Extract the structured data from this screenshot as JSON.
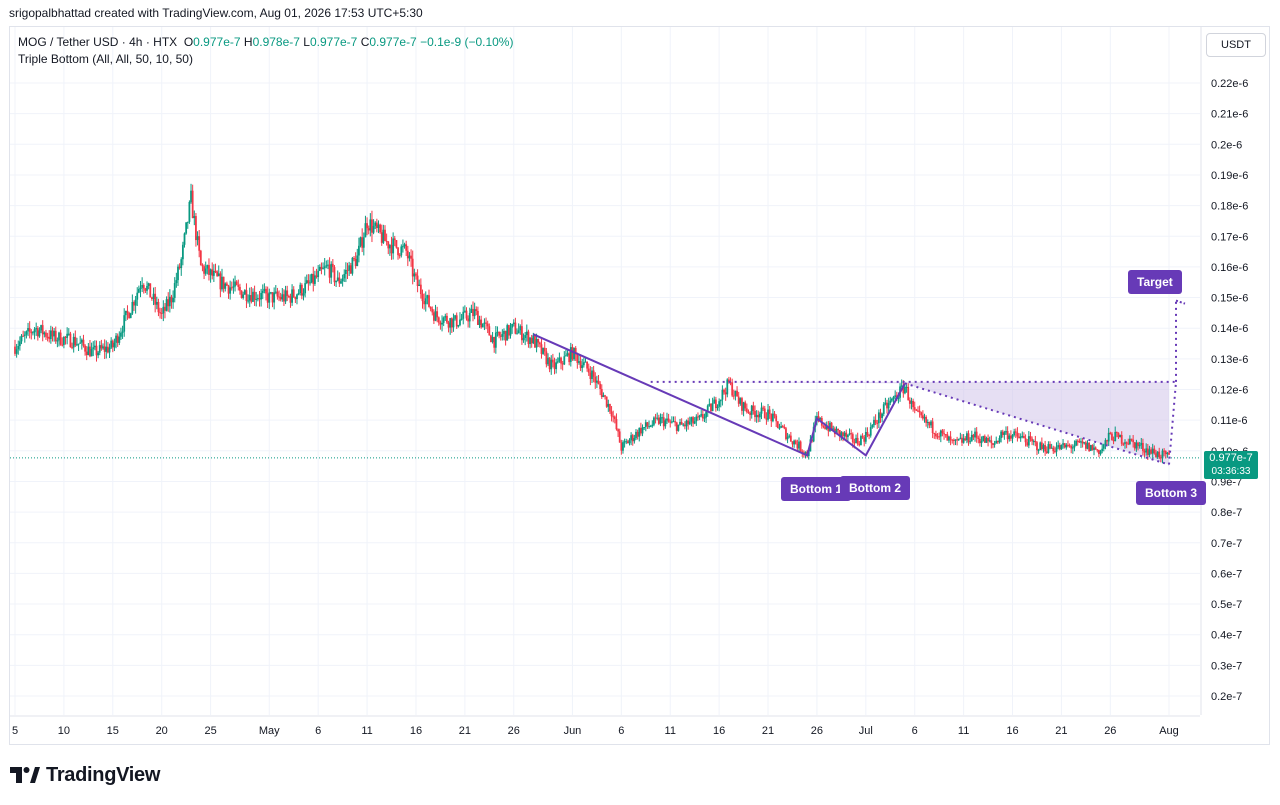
{
  "header": {
    "attribution": "srigopalbhattad created with TradingView.com, Aug 01, 2026 17:53 UTC+5:30"
  },
  "legend": {
    "symbol": "MOG / Tether USD · 4h · HTX",
    "o_key": "O",
    "o": "0.977e-7",
    "h_key": "H",
    "h": "0.978e-7",
    "l_key": "L",
    "l": "0.977e-7",
    "c_key": "C",
    "c": "0.977e-7",
    "change": "−0.1e-9 (−0.10%)",
    "indicator": "Triple Bottom (All, All, 50, 10, 50)"
  },
  "price_axis": {
    "unit": "USDT",
    "current_price": "0.977e-7",
    "countdown": "03:36:33"
  },
  "pattern_labels": {
    "bottom1": "Bottom 1",
    "bottom2": "Bottom 2",
    "bottom3": "Bottom 3",
    "target": "Target"
  },
  "brand": {
    "name": "TradingView"
  },
  "colors": {
    "up": "#089981",
    "down": "#f23645",
    "pattern": "#673ab7",
    "pattern_fill": "#d1c4e9",
    "grid": "#f0f3fa"
  },
  "chart_data": {
    "type": "candlestick",
    "title": "MOG / Tether USD · 4h · HTX",
    "ylabel": "USDT",
    "ylim": [
      1.5e-08,
      2.3e-07
    ],
    "y_ticks": [
      "0.2e-7",
      "0.3e-7",
      "0.4e-7",
      "0.5e-7",
      "0.6e-7",
      "0.7e-7",
      "0.8e-7",
      "0.9e-7",
      "0.10e-6",
      "0.11e-6",
      "0.12e-6",
      "0.13e-6",
      "0.14e-6",
      "0.15e-6",
      "0.16e-6",
      "0.17e-6",
      "0.18e-6",
      "0.19e-6",
      "0.2e-6",
      "0.21e-6",
      "0.22e-6"
    ],
    "y_tick_values": [
      0.2,
      0.3,
      0.4,
      0.5,
      0.6,
      0.7,
      0.8,
      0.9,
      1.0,
      1.1,
      1.2,
      1.3,
      1.4,
      1.5,
      1.6,
      1.7,
      1.8,
      1.9,
      2.0,
      2.1,
      2.2
    ],
    "y_tick_scale": "e-7",
    "x_ticks": [
      {
        "label": "5",
        "date": "2026-04-05"
      },
      {
        "label": "10",
        "date": "2026-04-10"
      },
      {
        "label": "15",
        "date": "2026-04-15"
      },
      {
        "label": "20",
        "date": "2026-04-20"
      },
      {
        "label": "25",
        "date": "2026-04-25"
      },
      {
        "label": "May",
        "date": "2026-05-01"
      },
      {
        "label": "6",
        "date": "2026-05-06"
      },
      {
        "label": "11",
        "date": "2026-05-11"
      },
      {
        "label": "16",
        "date": "2026-05-16"
      },
      {
        "label": "21",
        "date": "2026-05-21"
      },
      {
        "label": "26",
        "date": "2026-05-26"
      },
      {
        "label": "Jun",
        "date": "2026-06-01"
      },
      {
        "label": "6",
        "date": "2026-06-06"
      },
      {
        "label": "11",
        "date": "2026-06-11"
      },
      {
        "label": "16",
        "date": "2026-06-16"
      },
      {
        "label": "21",
        "date": "2026-06-21"
      },
      {
        "label": "26",
        "date": "2026-06-26"
      },
      {
        "label": "Jul",
        "date": "2026-07-01"
      },
      {
        "label": "6",
        "date": "2026-07-06"
      },
      {
        "label": "11",
        "date": "2026-07-11"
      },
      {
        "label": "16",
        "date": "2026-07-16"
      },
      {
        "label": "21",
        "date": "2026-07-21"
      },
      {
        "label": "26",
        "date": "2026-07-26"
      },
      {
        "label": "Aug",
        "date": "2026-08-01"
      }
    ],
    "x_range": [
      "2026-04-05",
      "2026-08-02"
    ],
    "price_path_close_e7": [
      [
        "2026-04-05",
        1.34
      ],
      [
        "2026-04-07",
        1.4
      ],
      [
        "2026-04-09",
        1.37
      ],
      [
        "2026-04-11",
        1.36
      ],
      [
        "2026-04-13",
        1.32
      ],
      [
        "2026-04-15",
        1.34
      ],
      [
        "2026-04-17",
        1.48
      ],
      [
        "2026-04-18",
        1.56
      ],
      [
        "2026-04-20",
        1.44
      ],
      [
        "2026-04-21",
        1.5
      ],
      [
        "2026-04-22",
        1.62
      ],
      [
        "2026-04-23",
        1.82
      ],
      [
        "2026-04-24",
        1.6
      ],
      [
        "2026-04-26",
        1.55
      ],
      [
        "2026-04-28",
        1.52
      ],
      [
        "2026-05-01",
        1.5
      ],
      [
        "2026-05-03",
        1.5
      ],
      [
        "2026-05-05",
        1.54
      ],
      [
        "2026-05-07",
        1.6
      ],
      [
        "2026-05-08",
        1.55
      ],
      [
        "2026-05-10",
        1.63
      ],
      [
        "2026-05-11",
        1.75
      ],
      [
        "2026-05-13",
        1.68
      ],
      [
        "2026-05-15",
        1.65
      ],
      [
        "2026-05-16",
        1.55
      ],
      [
        "2026-05-18",
        1.44
      ],
      [
        "2026-05-20",
        1.42
      ],
      [
        "2026-05-22",
        1.45
      ],
      [
        "2026-05-24",
        1.36
      ],
      [
        "2026-05-26",
        1.4
      ],
      [
        "2026-05-28",
        1.36
      ],
      [
        "2026-05-30",
        1.27
      ],
      [
        "2026-06-01",
        1.32
      ],
      [
        "2026-06-03",
        1.25
      ],
      [
        "2026-06-05",
        1.13
      ],
      [
        "2026-06-06",
        1.01
      ],
      [
        "2026-06-08",
        1.07
      ],
      [
        "2026-06-10",
        1.1
      ],
      [
        "2026-06-12",
        1.08
      ],
      [
        "2026-06-14",
        1.1
      ],
      [
        "2026-06-16",
        1.17
      ],
      [
        "2026-06-17",
        1.22
      ],
      [
        "2026-06-18",
        1.16
      ],
      [
        "2026-06-19",
        1.13
      ],
      [
        "2026-06-21",
        1.12
      ],
      [
        "2026-06-23",
        1.05
      ],
      [
        "2026-06-25",
        0.99
      ],
      [
        "2026-06-26",
        1.1
      ],
      [
        "2026-06-28",
        1.06
      ],
      [
        "2026-06-30",
        1.03
      ],
      [
        "2026-07-01",
        1.05
      ],
      [
        "2026-07-03",
        1.14
      ],
      [
        "2026-07-05",
        1.21
      ],
      [
        "2026-07-06",
        1.12
      ],
      [
        "2026-07-08",
        1.07
      ],
      [
        "2026-07-10",
        1.02
      ],
      [
        "2026-07-12",
        1.05
      ],
      [
        "2026-07-14",
        1.02
      ],
      [
        "2026-07-15",
        1.06
      ],
      [
        "2026-07-17",
        1.04
      ],
      [
        "2026-07-19",
        1.01
      ],
      [
        "2026-07-21",
        1.01
      ],
      [
        "2026-07-23",
        1.02
      ],
      [
        "2026-07-25",
        1.0
      ],
      [
        "2026-07-26",
        1.05
      ],
      [
        "2026-07-28",
        1.03
      ],
      [
        "2026-07-30",
        1.0
      ],
      [
        "2026-08-01",
        0.977
      ]
    ],
    "pattern": {
      "name": "Triple Bottom",
      "zigzag_e7": [
        [
          "2026-05-28",
          1.38
        ],
        [
          "2026-06-25",
          0.985
        ],
        [
          "2026-06-26",
          1.105
        ],
        [
          "2026-07-01",
          0.985
        ],
        [
          "2026-07-05",
          1.22
        ],
        [
          "2026-08-01",
          0.955
        ]
      ],
      "neckline_e7": 1.225,
      "neckline_from": "2026-06-09",
      "target_e7": 1.49,
      "bottoms": [
        "2026-06-25",
        "2026-07-01",
        "2026-08-01"
      ]
    },
    "last_price_e7": 0.977
  }
}
